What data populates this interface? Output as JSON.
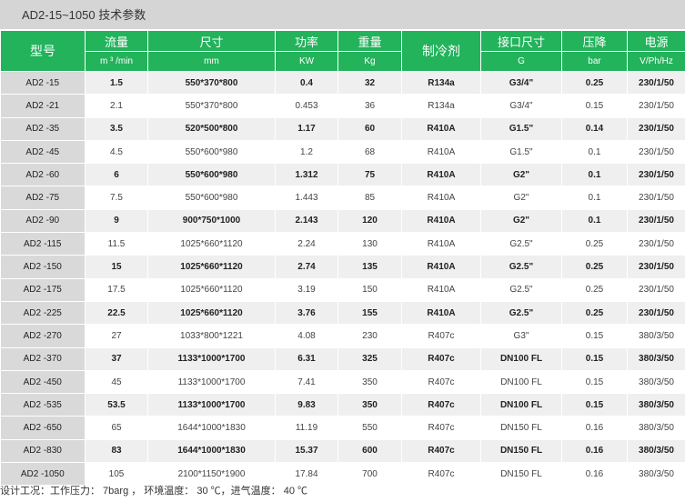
{
  "title": "AD2-15~1050 技术参数",
  "headers": [
    {
      "label": "型号",
      "unit": ""
    },
    {
      "label": "流量",
      "unit": "m ³ /min"
    },
    {
      "label": "尺寸",
      "unit": "mm"
    },
    {
      "label": "功率",
      "unit": "KW"
    },
    {
      "label": "重量",
      "unit": "Kg"
    },
    {
      "label": "制冷剂",
      "unit": ""
    },
    {
      "label": "接口尺寸",
      "unit": "G"
    },
    {
      "label": "压降",
      "unit": "bar"
    },
    {
      "label": "电源",
      "unit": "V/Ph/Hz"
    }
  ],
  "rows": [
    [
      "AD2 -15",
      "1.5",
      "550*370*800",
      "0.4",
      "32",
      "R134a",
      "G3/4\"",
      "0.25",
      "230/1/50"
    ],
    [
      "AD2 -21",
      "2.1",
      "550*370*800",
      "0.453",
      "36",
      "R134a",
      "G3/4\"",
      "0.15",
      "230/1/50"
    ],
    [
      "AD2 -35",
      "3.5",
      "520*500*800",
      "1.17",
      "60",
      "R410A",
      "G1.5\"",
      "0.14",
      "230/1/50"
    ],
    [
      "AD2 -45",
      "4.5",
      "550*600*980",
      "1.2",
      "68",
      "R410A",
      "G1.5\"",
      "0.1",
      "230/1/50"
    ],
    [
      "AD2 -60",
      "6",
      "550*600*980",
      "1.312",
      "75",
      "R410A",
      "G2\"",
      "0.1",
      "230/1/50"
    ],
    [
      "AD2 -75",
      "7.5",
      "550*600*980",
      "1.443",
      "85",
      "R410A",
      "G2\"",
      "0.1",
      "230/1/50"
    ],
    [
      "AD2 -90",
      "9",
      "900*750*1000",
      "2.143",
      "120",
      "R410A",
      "G2\"",
      "0.1",
      "230/1/50"
    ],
    [
      "AD2 -115",
      "11.5",
      "1025*660*1120",
      "2.24",
      "130",
      "R410A",
      "G2.5\"",
      "0.25",
      "230/1/50"
    ],
    [
      "AD2 -150",
      "15",
      "1025*660*1120",
      "2.74",
      "135",
      "R410A",
      "G2.5\"",
      "0.25",
      "230/1/50"
    ],
    [
      "AD2 -175",
      "17.5",
      "1025*660*1120",
      "3.19",
      "150",
      "R410A",
      "G2.5\"",
      "0.25",
      "230/1/50"
    ],
    [
      "AD2 -225",
      "22.5",
      "1025*660*1120",
      "3.76",
      "155",
      "R410A",
      "G2.5\"",
      "0.25",
      "230/1/50"
    ],
    [
      "AD2 -270",
      "27",
      "1033*800*1221",
      "4.08",
      "230",
      "R407c",
      "G3\"",
      "0.15",
      "380/3/50"
    ],
    [
      "AD2 -370",
      "37",
      "1133*1000*1700",
      "6.31",
      "325",
      "R407c",
      "DN100 FL",
      "0.15",
      "380/3/50"
    ],
    [
      "AD2 -450",
      "45",
      "1133*1000*1700",
      "7.41",
      "350",
      "R407c",
      "DN100 FL",
      "0.15",
      "380/3/50"
    ],
    [
      "AD2 -535",
      "53.5",
      "1133*1000*1700",
      "9.83",
      "350",
      "R407c",
      "DN100 FL",
      "0.15",
      "380/3/50"
    ],
    [
      "AD2 -650",
      "65",
      "1644*1000*1830",
      "11.19",
      "550",
      "R407c",
      "DN150 FL",
      "0.16",
      "380/3/50"
    ],
    [
      "AD2 -830",
      "83",
      "1644*1000*1830",
      "15.37",
      "600",
      "R407c",
      "DN150 FL",
      "0.16",
      "380/3/50"
    ],
    [
      "AD2 -1050",
      "105",
      "2100*1150*1900",
      "17.84",
      "700",
      "R407c",
      "DN150 FL",
      "0.16",
      "380/3/50"
    ]
  ],
  "note": "设计工况：工作压力： 7barg ， 环境温度： 30 ℃，进气温度： 40 ℃",
  "colors": {
    "header": "#22b35b",
    "title_bar": "#d5d5d5",
    "model_col": "#d9d9d9",
    "odd_row": "#efefef"
  }
}
